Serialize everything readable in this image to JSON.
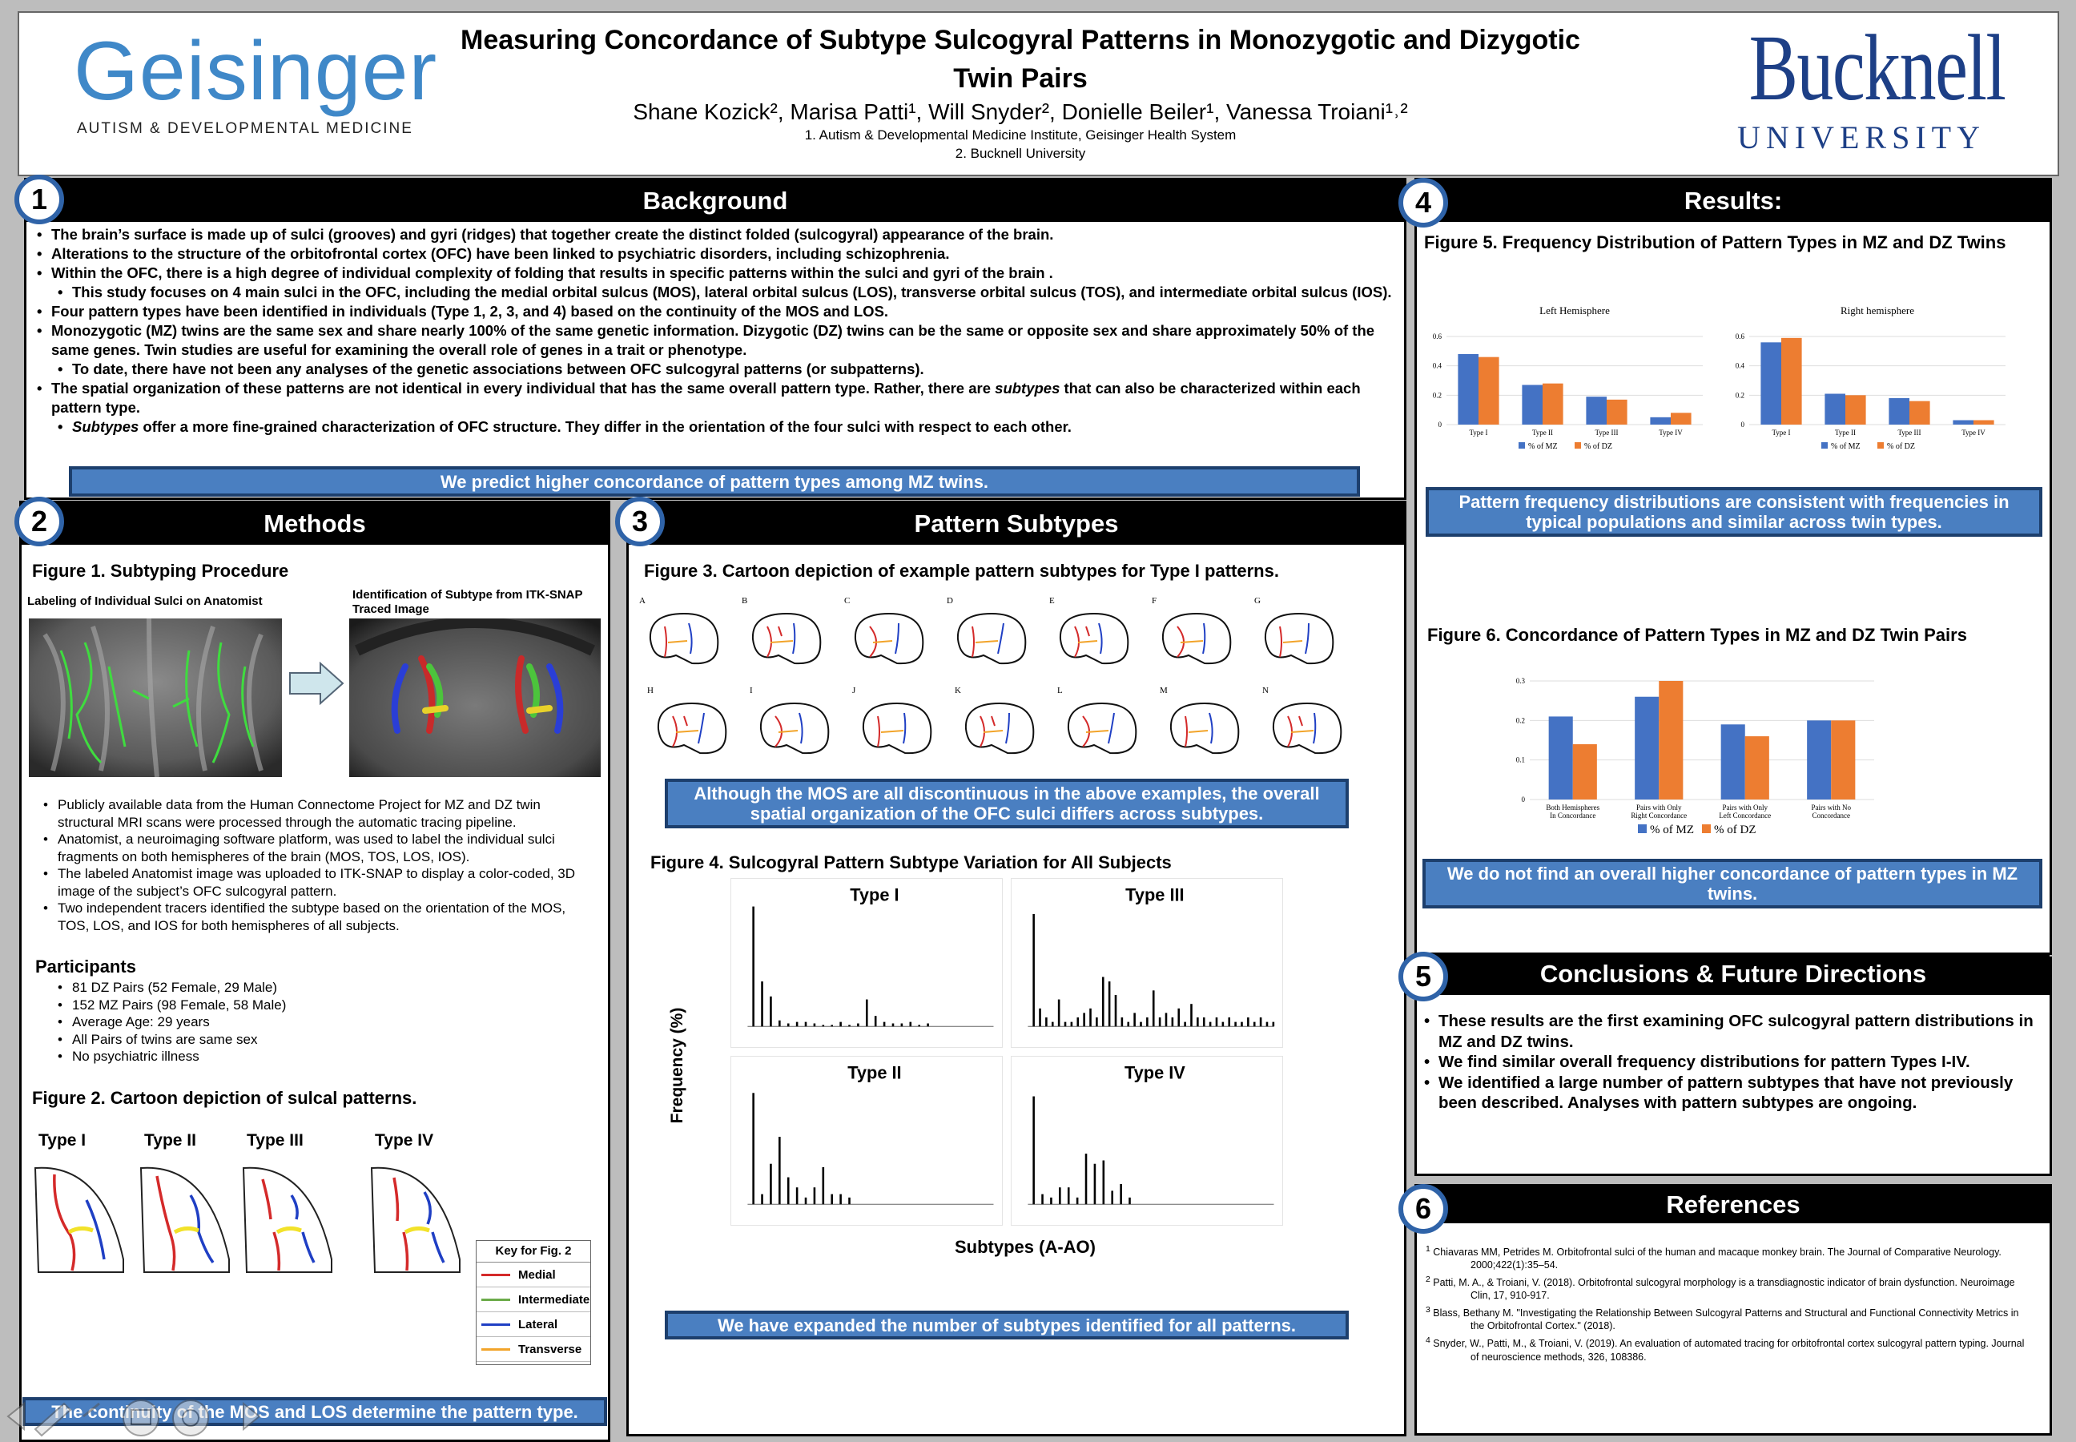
{
  "header": {
    "title_line1": "Measuring Concordance of Subtype Sulcogyral Patterns in Monozygotic and Dizygotic",
    "title_line2": "Twin Pairs",
    "authors": "Shane Kozick², Marisa Patti¹, Will Snyder², Donielle Beiler¹, Vanessa Troiani¹˒²",
    "affil1": "1.  Autism & Developmental Medicine Institute, Geisinger Health System",
    "affil2": "2. Bucknell University",
    "logo_left_name": "Geisinger",
    "logo_left_sub": "AUTISM & DEVELOPMENTAL MEDICINE",
    "logo_right_name": "Bucknell",
    "logo_right_sub": "UNIVERSITY"
  },
  "background": {
    "num": "1",
    "title": "Background",
    "bullets": [
      {
        "level": 1,
        "text": "The brain’s surface is made up of sulci (grooves) and gyri (ridges) that together create the distinct folded (sulcogyral) appearance of the brain."
      },
      {
        "level": 1,
        "text": "Alterations to the structure of the orbitofrontal cortex (OFC) have been linked to psychiatric disorders, including schizophrenia."
      },
      {
        "level": 1,
        "text": "Within the OFC, there is a high degree of individual complexity of folding that results in specific patterns within the sulci and gyri of the brain ."
      },
      {
        "level": 2,
        "text": "This study focuses on 4 main sulci in the OFC, including the medial orbital sulcus (MOS), lateral orbital sulcus (LOS), transverse orbital sulcus (TOS), and intermediate orbital sulcus (IOS)."
      },
      {
        "level": 1,
        "text": "Four pattern types have been identified in individuals (Type 1, 2, 3, and 4) based on the continuity of the MOS and LOS."
      },
      {
        "level": 1,
        "text": "Monozygotic (MZ) twins are the same sex and share nearly 100% of the same genetic information. Dizygotic (DZ) twins can be the same or opposite sex and share approximately 50% of the same genes. Twin studies are useful for examining the overall role of genes in a trait or phenotype."
      },
      {
        "level": 2,
        "text": "To date, there have not been any analyses of the genetic associations between OFC sulcogyral patterns (or subpatterns)."
      },
      {
        "level": 1,
        "text": "The spatial organization of these patterns are not identical in every individual that has the same overall pattern type. Rather, there are subtypes that can also be characterized within each pattern type."
      },
      {
        "level": 2,
        "text": "Subtypes offer a more fine-grained characterization of OFC structure. They differ in the orientation of the four sulci with respect to each other."
      }
    ],
    "callout": "We predict higher concordance of pattern types among MZ twins."
  },
  "methods": {
    "num": "2",
    "title": "Methods",
    "fig1_title": "Figure 1.  Subtyping Procedure",
    "fig1_left_caption": "Labeling of Individual Sulci on Anatomist",
    "fig1_right_caption": "Identification of Subtype from ITK-SNAP Traced Image",
    "bullets": [
      "Publicly available data from the Human Connectome Project for MZ and DZ twin structural MRI scans were processed through the automatic tracing pipeline.",
      "Anatomist, a neuroimaging software platform, was used to label the individual sulci fragments on both hemispheres of the brain (MOS, TOS, LOS, IOS).",
      "The labeled Anatomist image was uploaded to ITK-SNAP to display a color-coded, 3D image of the subject’s OFC sulcogyral pattern.",
      "Two independent tracers identified the subtype based on the orientation of the MOS, TOS, LOS, and IOS for both hemispheres of all subjects."
    ],
    "participants_title": "Participants",
    "participants": [
      "81 DZ Pairs (52 Female, 29 Male)",
      "152 MZ Pairs (98 Female, 58 Male)",
      "Average Age: 29 years",
      "All Pairs of twins are same sex",
      "No psychiatric illness"
    ],
    "fig2_title": "Figure 2.  Cartoon depiction of sulcal patterns.",
    "fig2_types": [
      "Type I",
      "Type II",
      "Type III",
      "Type IV"
    ],
    "key_title": "Key for Fig. 2",
    "key_items": [
      {
        "label": "Medial",
        "color": "#d42a2a"
      },
      {
        "label": "Intermediate",
        "color": "#6cab4a"
      },
      {
        "label": "Lateral",
        "color": "#1f3fc4"
      },
      {
        "label": "Transverse",
        "color": "#f2a42a"
      }
    ],
    "callout": "The continuity of the MOS and LOS determine the pattern type."
  },
  "subtypes": {
    "num": "3",
    "title": "Pattern Subtypes",
    "fig3_title": "Figure 3.  Cartoon depiction of example pattern subtypes for Type I patterns.",
    "fig3_letters": [
      "A",
      "B",
      "C",
      "D",
      "E",
      "F",
      "G",
      "H",
      "I",
      "J",
      "K",
      "L",
      "M",
      "N"
    ],
    "callout1": "Although the MOS are all discontinuous in the above examples, the overall spatial organization of the OFC sulci differs across subtypes.",
    "fig4_title": "Figure 4.  Sulcogyral Pattern Subtype Variation for All Subjects",
    "ylabel": "Frequency (%)",
    "xlabel": "Subtypes (A-AO)",
    "callout2": "We have expanded the number of subtypes identified for all patterns."
  },
  "results": {
    "num": "4",
    "title": "Results:",
    "fig5_title": "Figure 5.  Frequency Distribution of Pattern Types in MZ and DZ Twins",
    "callout1": "Pattern frequency distributions are consistent with frequencies in typical populations and similar across twin types.",
    "fig6_title": "Figure 6.  Concordance of Pattern Types in MZ and DZ Twin Pairs",
    "callout2": "We do not find an overall higher concordance of pattern types in MZ twins."
  },
  "conclusions": {
    "num": "5",
    "title": "Conclusions & Future Directions",
    "bullets": [
      "These results are the first examining OFC sulcogyral pattern distributions in MZ and DZ twins.",
      "We find similar overall frequency distributions for pattern Types I-IV.",
      "We identified a large number of pattern subtypes that have not previously been described. Analyses with pattern subtypes are ongoing."
    ]
  },
  "references": {
    "num": "6",
    "title": "References",
    "items": [
      {
        "sup": "1",
        "text": "Chiavaras MM, Petrides M. Orbitofrontal sulci of the human and macaque monkey brain. The Journal of Comparative Neurology. 2000;422(1):35–54."
      },
      {
        "sup": "2",
        "text": "Patti, M. A., & Troiani, V. (2018). Orbitofrontal sulcogyral morphology is a transdiagnostic indicator of brain dysfunction. Neuroimage Clin, 17, 910-917."
      },
      {
        "sup": "3",
        "text": "Blass, Bethany M. \"Investigating the Relationship Between Sulcogyral Patterns and Structural and Functional Connectivity Metrics in the Orbitofrontal Cortex.\" (2018)."
      },
      {
        "sup": "4",
        "text": "Snyder, W., Patti, M., & Troiani, V. (2019). An evaluation of automated tracing for orbitofrontal cortex sulcogyral pattern typing. Journal of neuroscience methods, 326, 108386."
      }
    ]
  },
  "colors": {
    "mz": "#4472c4",
    "dz": "#ed7d31",
    "accent": "#2f63a8",
    "callout": "#4a7fc1"
  },
  "chart_data": [
    {
      "id": "fig5-left",
      "type": "bar",
      "title": "Left Hemisphere",
      "categories": [
        "Type I",
        "Type II",
        "Type III",
        "Type IV"
      ],
      "series": [
        {
          "name": "% of MZ",
          "values": [
            0.48,
            0.27,
            0.19,
            0.05
          ]
        },
        {
          "name": "% of DZ",
          "values": [
            0.46,
            0.28,
            0.17,
            0.08
          ]
        }
      ],
      "yticks": [
        "0",
        "0.2",
        "0.4",
        "0.6"
      ],
      "ylim": [
        0,
        0.6
      ],
      "legend": "bottom"
    },
    {
      "id": "fig5-right",
      "type": "bar",
      "title": "Right hemisphere",
      "categories": [
        "Type I",
        "Type II",
        "Type III",
        "Type IV"
      ],
      "series": [
        {
          "name": "% of MZ",
          "values": [
            0.56,
            0.21,
            0.18,
            0.03
          ]
        },
        {
          "name": "% of DZ",
          "values": [
            0.59,
            0.2,
            0.16,
            0.03
          ]
        }
      ],
      "yticks": [
        "0",
        "0.2",
        "0.4",
        "0.6"
      ],
      "ylim": [
        0,
        0.6
      ],
      "legend": "bottom"
    },
    {
      "id": "fig6",
      "type": "bar",
      "title": "",
      "categories": [
        "Both Hemispheres In Concordance",
        "Pairs with Only Right Concordance",
        "Pairs with Only Left Concordance",
        "Pairs with No Concordance"
      ],
      "series": [
        {
          "name": "% of MZ",
          "values": [
            0.21,
            0.26,
            0.19,
            0.2
          ]
        },
        {
          "name": "% of DZ",
          "values": [
            0.14,
            0.3,
            0.16,
            0.2
          ]
        }
      ],
      "yticks": [
        "0",
        "0.1",
        "0.2",
        "0.3"
      ],
      "ylim": [
        0,
        0.3
      ],
      "legend": "bottom"
    },
    {
      "id": "fig4-type1",
      "type": "bar",
      "title": "Type I",
      "values": [
        80,
        30,
        20,
        4,
        2,
        3,
        3,
        2,
        1,
        1,
        3,
        1,
        2,
        18,
        7,
        3,
        2,
        2,
        3,
        1,
        2
      ],
      "ylim": [
        0,
        90
      ]
    },
    {
      "id": "fig4-type3",
      "type": "bar",
      "title": "Type III",
      "values": [
        25,
        4,
        2,
        1,
        6,
        1,
        1,
        2,
        3,
        4,
        2,
        11,
        10,
        7,
        2,
        1,
        3,
        1,
        2,
        8,
        2,
        3,
        2,
        4,
        1,
        5,
        2,
        2,
        1,
        2,
        1,
        2,
        1,
        1,
        2,
        1,
        2,
        1,
        1
      ],
      "ylim": [
        0,
        30
      ]
    },
    {
      "id": "fig4-type2",
      "type": "bar",
      "title": "Type II",
      "values": [
        33,
        3,
        12,
        20,
        8,
        5,
        2,
        5,
        11,
        3,
        3,
        2
      ],
      "ylim": [
        0,
        40
      ]
    },
    {
      "id": "fig4-type4",
      "type": "bar",
      "title": "Type IV",
      "values": [
        32,
        3,
        2,
        5,
        5,
        2,
        15,
        12,
        13,
        4,
        6,
        2
      ],
      "ylim": [
        0,
        40
      ]
    }
  ]
}
